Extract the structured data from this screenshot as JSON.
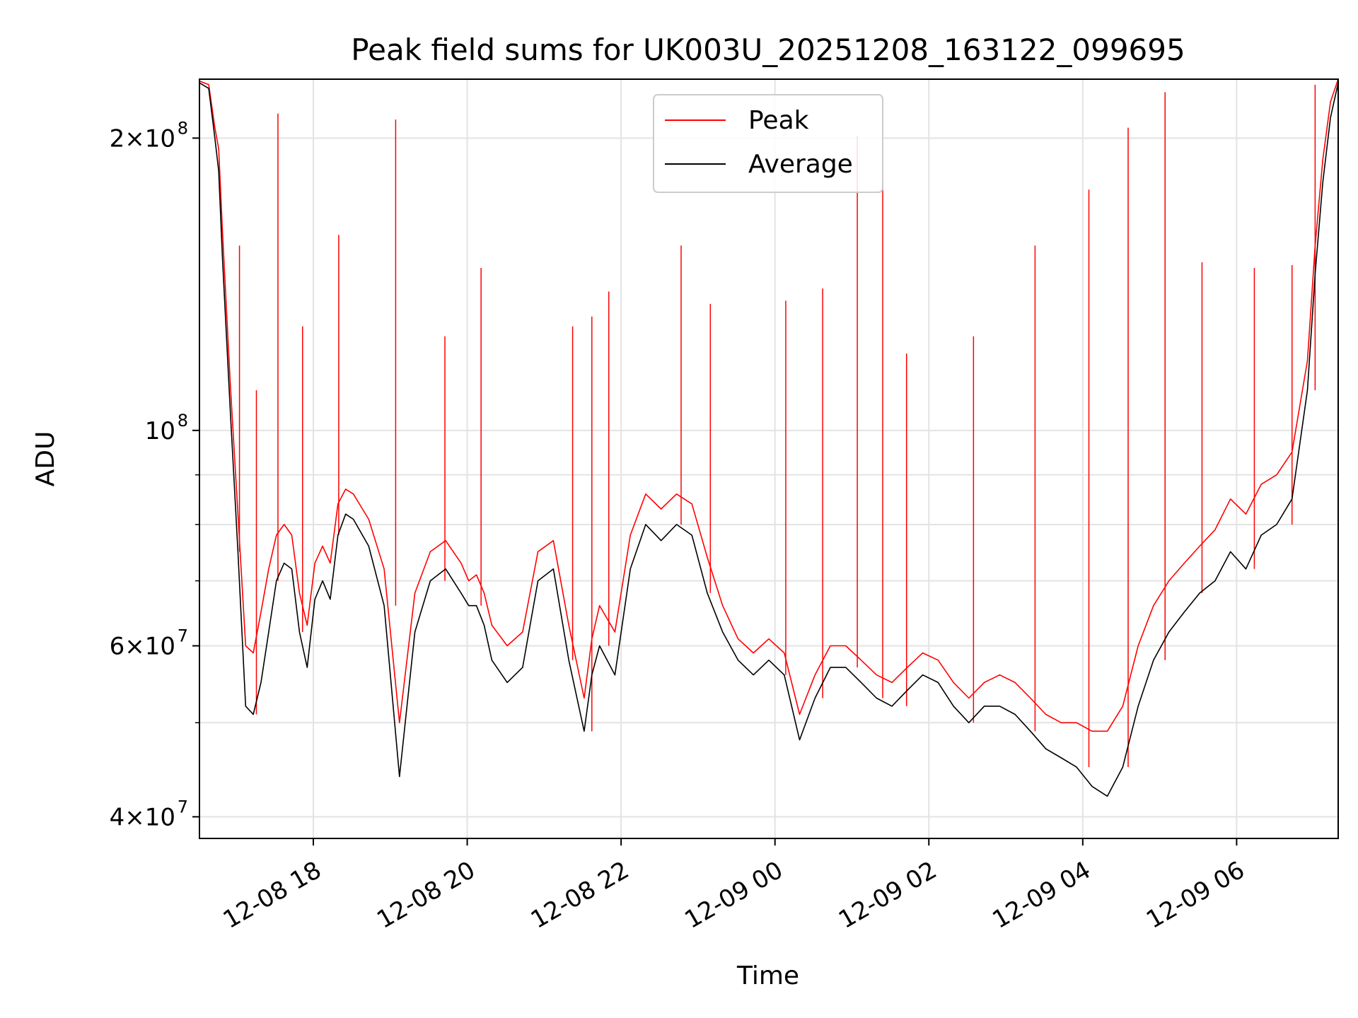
{
  "chart_data": {
    "type": "line",
    "title": "Peak field sums for UK003U_20251208_163122_099695",
    "xlabel": "Time",
    "ylabel": "ADU",
    "yscale": "log",
    "ylim": [
      38000000,
      230000000
    ],
    "x_unit": "hours since 12-08 16:31",
    "xlim": [
      0,
      14.8
    ],
    "grid": true,
    "legend_position": "top-center",
    "colors": {
      "Peak": "#ff0000",
      "Average": "#000000",
      "grid": "#e3e3e3"
    },
    "x_ticks": [
      {
        "value": 1.48,
        "label": "12-08 18"
      },
      {
        "value": 3.48,
        "label": "12-08 20"
      },
      {
        "value": 5.48,
        "label": "12-08 22"
      },
      {
        "value": 7.48,
        "label": "12-09 00"
      },
      {
        "value": 9.48,
        "label": "12-09 02"
      },
      {
        "value": 11.48,
        "label": "12-09 04"
      },
      {
        "value": 13.48,
        "label": "12-09 06"
      }
    ],
    "y_ticks": [
      {
        "value": 40000000,
        "base": "4×10",
        "exp": "7"
      },
      {
        "value": 60000000,
        "base": "6×10",
        "exp": "7"
      },
      {
        "value": 100000000,
        "base": "10",
        "exp": "8"
      },
      {
        "value": 200000000,
        "base": "2×10",
        "exp": "8"
      }
    ],
    "y_minor_ticks": [
      50000000,
      70000000,
      80000000,
      90000000
    ],
    "series": [
      {
        "name": "Average",
        "x": [
          0.0,
          0.12,
          0.2,
          0.25,
          0.3,
          0.4,
          0.5,
          0.6,
          0.7,
          0.8,
          0.9,
          1.0,
          1.1,
          1.2,
          1.3,
          1.4,
          1.5,
          1.6,
          1.7,
          1.8,
          1.9,
          2.0,
          2.2,
          2.4,
          2.6,
          2.8,
          3.0,
          3.2,
          3.4,
          3.5,
          3.6,
          3.7,
          3.8,
          4.0,
          4.2,
          4.4,
          4.6,
          4.8,
          5.0,
          5.1,
          5.2,
          5.4,
          5.6,
          5.8,
          6.0,
          6.2,
          6.4,
          6.6,
          6.8,
          7.0,
          7.2,
          7.4,
          7.6,
          7.8,
          8.0,
          8.2,
          8.4,
          8.6,
          8.8,
          9.0,
          9.2,
          9.4,
          9.6,
          9.8,
          10.0,
          10.2,
          10.4,
          10.6,
          10.8,
          11.0,
          11.2,
          11.4,
          11.6,
          11.8,
          12.0,
          12.2,
          12.4,
          12.6,
          12.8,
          13.0,
          13.2,
          13.4,
          13.6,
          13.8,
          14.0,
          14.2,
          14.4,
          14.5,
          14.6,
          14.7,
          14.8
        ],
        "values": [
          228000000,
          225000000,
          200000000,
          185000000,
          150000000,
          105000000,
          75000000,
          52000000,
          51000000,
          55000000,
          62000000,
          70000000,
          73000000,
          72000000,
          62000000,
          57000000,
          67000000,
          70000000,
          67000000,
          78000000,
          82000000,
          81000000,
          76000000,
          66000000,
          44000000,
          62000000,
          70000000,
          72000000,
          68000000,
          66000000,
          66000000,
          63000000,
          58000000,
          55000000,
          57000000,
          70000000,
          72000000,
          58000000,
          49000000,
          56000000,
          60000000,
          56000000,
          72000000,
          80000000,
          77000000,
          80000000,
          78000000,
          68000000,
          62000000,
          58000000,
          56000000,
          58000000,
          56000000,
          48000000,
          53000000,
          57000000,
          57000000,
          55000000,
          53000000,
          52000000,
          54000000,
          56000000,
          55000000,
          52000000,
          50000000,
          52000000,
          52000000,
          51000000,
          49000000,
          47000000,
          46000000,
          45000000,
          43000000,
          42000000,
          45000000,
          52000000,
          58000000,
          62000000,
          65000000,
          68000000,
          70000000,
          75000000,
          72000000,
          78000000,
          80000000,
          85000000,
          110000000,
          145000000,
          180000000,
          210000000,
          228000000
        ]
      },
      {
        "name": "Peak",
        "x": [
          0.0,
          0.12,
          0.2,
          0.25,
          0.3,
          0.4,
          0.5,
          0.6,
          0.7,
          0.8,
          0.9,
          1.0,
          1.1,
          1.2,
          1.3,
          1.4,
          1.5,
          1.6,
          1.7,
          1.8,
          1.9,
          2.0,
          2.2,
          2.4,
          2.6,
          2.8,
          3.0,
          3.2,
          3.4,
          3.5,
          3.6,
          3.7,
          3.8,
          4.0,
          4.2,
          4.4,
          4.6,
          4.8,
          5.0,
          5.1,
          5.2,
          5.4,
          5.6,
          5.8,
          6.0,
          6.2,
          6.4,
          6.6,
          6.8,
          7.0,
          7.2,
          7.4,
          7.6,
          7.8,
          8.0,
          8.2,
          8.4,
          8.6,
          8.8,
          9.0,
          9.2,
          9.4,
          9.6,
          9.8,
          10.0,
          10.2,
          10.4,
          10.6,
          10.8,
          11.0,
          11.2,
          11.4,
          11.6,
          11.8,
          12.0,
          12.2,
          12.4,
          12.6,
          12.8,
          13.0,
          13.2,
          13.4,
          13.6,
          13.8,
          14.0,
          14.2,
          14.4,
          14.5,
          14.6,
          14.7,
          14.8
        ],
        "values": [
          229000000,
          227000000,
          205000000,
          195000000,
          160000000,
          112000000,
          82000000,
          60000000,
          59000000,
          65000000,
          72000000,
          78000000,
          80000000,
          78000000,
          68000000,
          63000000,
          73000000,
          76000000,
          73000000,
          84000000,
          87000000,
          86000000,
          81000000,
          72000000,
          50000000,
          68000000,
          75000000,
          77000000,
          73000000,
          70000000,
          71000000,
          68000000,
          63000000,
          60000000,
          62000000,
          75000000,
          77000000,
          63000000,
          53000000,
          61000000,
          66000000,
          62000000,
          78000000,
          86000000,
          83000000,
          86000000,
          84000000,
          74000000,
          66000000,
          61000000,
          59000000,
          61000000,
          59000000,
          51000000,
          56000000,
          60000000,
          60000000,
          58000000,
          56000000,
          55000000,
          57000000,
          59000000,
          58000000,
          55000000,
          53000000,
          55000000,
          56000000,
          55000000,
          53000000,
          51000000,
          50000000,
          50000000,
          49000000,
          49000000,
          52000000,
          60000000,
          66000000,
          70000000,
          73000000,
          76000000,
          79000000,
          85000000,
          82000000,
          88000000,
          90000000,
          95000000,
          118000000,
          155000000,
          190000000,
          218000000,
          230000000
        ]
      }
    ],
    "peak_spikes": [
      {
        "x": 0.52,
        "y": 155000000
      },
      {
        "x": 0.74,
        "y": 110000000
      },
      {
        "x": 1.02,
        "y": 212000000
      },
      {
        "x": 1.34,
        "y": 128000000
      },
      {
        "x": 1.81,
        "y": 159000000
      },
      {
        "x": 2.55,
        "y": 209000000
      },
      {
        "x": 3.19,
        "y": 125000000
      },
      {
        "x": 3.66,
        "y": 147000000
      },
      {
        "x": 4.85,
        "y": 128000000
      },
      {
        "x": 5.1,
        "y": 131000000
      },
      {
        "x": 5.32,
        "y": 139000000
      },
      {
        "x": 6.26,
        "y": 155000000
      },
      {
        "x": 6.64,
        "y": 135000000
      },
      {
        "x": 7.62,
        "y": 136000000
      },
      {
        "x": 8.1,
        "y": 140000000
      },
      {
        "x": 8.55,
        "y": 201000000
      },
      {
        "x": 8.88,
        "y": 180000000
      },
      {
        "x": 9.19,
        "y": 120000000
      },
      {
        "x": 10.06,
        "y": 125000000
      },
      {
        "x": 10.86,
        "y": 155000000
      },
      {
        "x": 11.56,
        "y": 177000000
      },
      {
        "x": 12.07,
        "y": 205000000
      },
      {
        "x": 12.55,
        "y": 223000000
      },
      {
        "x": 13.03,
        "y": 149000000
      },
      {
        "x": 13.71,
        "y": 147000000
      },
      {
        "x": 14.2,
        "y": 148000000
      },
      {
        "x": 14.5,
        "y": 227000000
      }
    ]
  }
}
